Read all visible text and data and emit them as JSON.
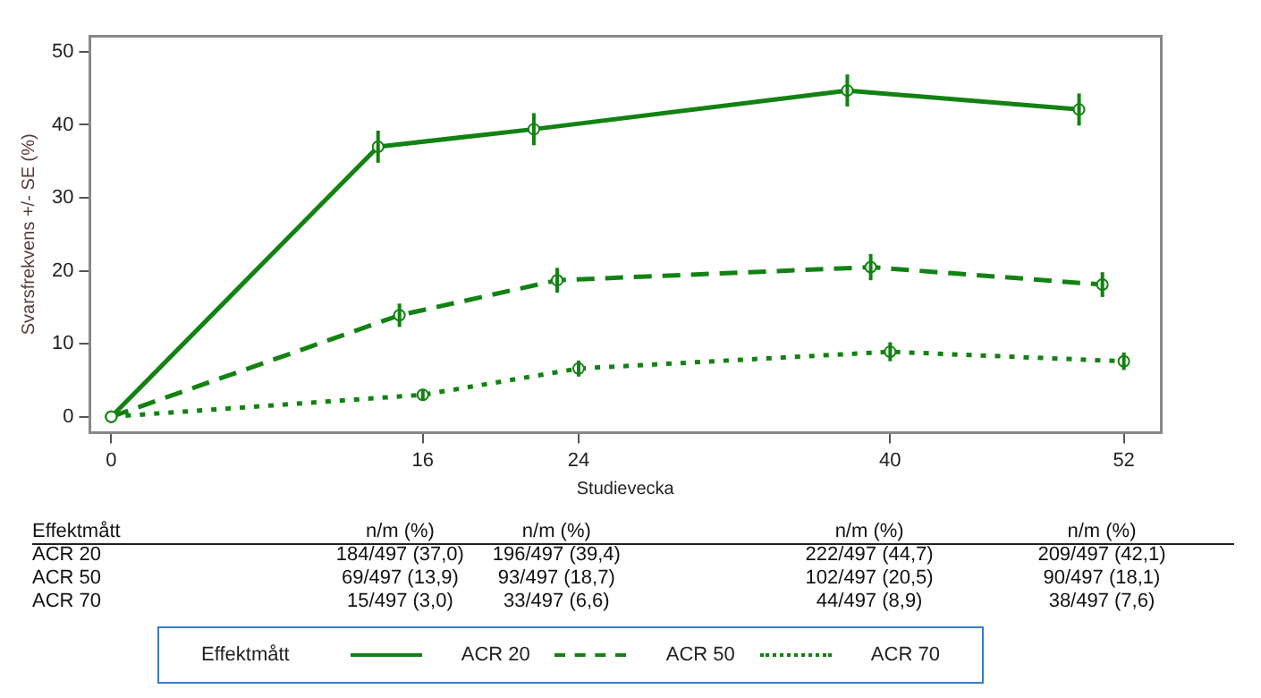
{
  "chart_data": {
    "type": "line",
    "xlabel": "Studievecka",
    "ylabel": "Svarsfrekvens +/- SE (%)",
    "legend_title": "Effektmått",
    "legend": "bottom",
    "grid": false,
    "marker": "circle",
    "xlim": [
      -1.1,
      53.9
    ],
    "xticks": [
      0,
      16,
      24,
      40,
      52
    ],
    "ylim": [
      -2.2,
      52.2
    ],
    "yticks": [
      0,
      10,
      20,
      30,
      40,
      50
    ],
    "annotations": [
      "Effektmått",
      "n/m (%)",
      "n/m (%)",
      "n/m (%)",
      "n/m (%)",
      "184/497 (37,0)",
      "196/497 (39,4)",
      "222/497 (44,7)",
      "209/497 (42,1)",
      "69/497 (13,9)",
      "93/497 (18,7)",
      "102/497 (20,5)",
      "90/497 (18,1)",
      "15/497 (3,0)",
      "33/497 (6,6)",
      "44/497 (8,9)",
      "38/497 (7,6)"
    ],
    "series": [
      {
        "name": "ACR 20",
        "color": "#128212",
        "line_style": "solid",
        "x": [
          0,
          13.7,
          21.7,
          37.8,
          49.7
        ],
        "values": [
          0,
          37.0,
          39.4,
          44.7,
          42.1
        ],
        "errors": [
          null,
          2.2,
          2.2,
          2.2,
          2.2
        ]
      },
      {
        "name": "ACR 50",
        "color": "#128212",
        "line_style": "dashed",
        "x": [
          0,
          14.8,
          22.9,
          39,
          50.9
        ],
        "values": [
          0,
          13.9,
          18.7,
          20.5,
          18.1
        ],
        "errors": [
          null,
          1.6,
          1.7,
          1.8,
          1.7
        ]
      },
      {
        "name": "ACR 70",
        "color": "#128212",
        "line_style": "dotted",
        "x": [
          0,
          16,
          24,
          40,
          52
        ],
        "values": [
          0,
          3.0,
          6.6,
          8.9,
          7.6
        ],
        "errors": [
          null,
          0.8,
          1.1,
          1.3,
          1.2
        ]
      }
    ]
  }
}
